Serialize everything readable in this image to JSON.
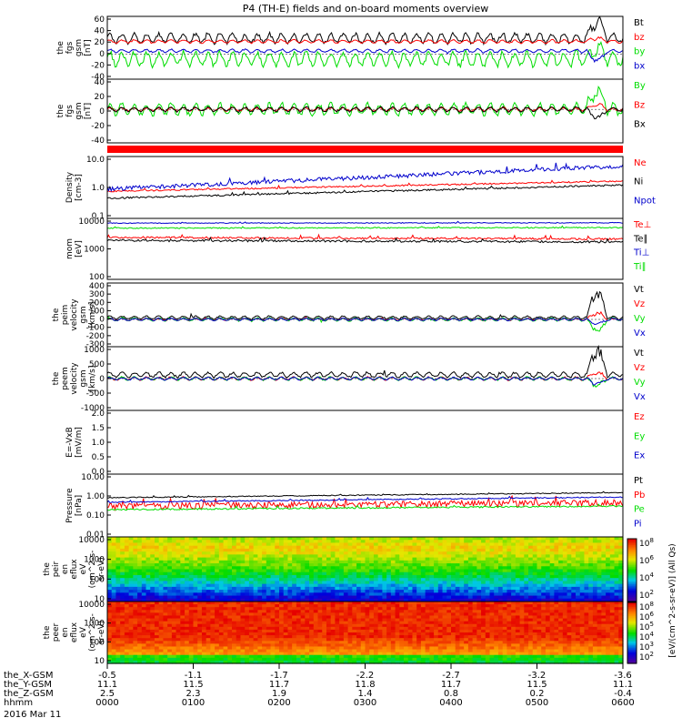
{
  "title": "P4 (TH-E) fields and on-board moments overview",
  "chart_data": [
    {
      "id": "fgs_gsm_top",
      "type": "line",
      "ylabel_lines": [
        "the",
        "fgs",
        "gsm",
        "[nT]"
      ],
      "yticks": [
        "60",
        "40",
        "20",
        "0",
        "-20",
        "-40"
      ],
      "ylim": [
        -40,
        60
      ],
      "log": false,
      "series": [
        {
          "name": "Bt",
          "color": "#000000",
          "base": 25,
          "amp": 9,
          "spike": 34
        },
        {
          "name": "bz",
          "color": "#ff0000",
          "base": 20,
          "amp": 3,
          "spike": 6
        },
        {
          "name": "by",
          "color": "#00dd00",
          "base": -8,
          "amp": 13,
          "spike": 20
        },
        {
          "name": "bx",
          "color": "#0000cc",
          "base": 5,
          "amp": 3,
          "spike": -18
        }
      ]
    },
    {
      "id": "fgs_gsm_second",
      "type": "line",
      "ylabel_lines": [
        "the",
        "fgs",
        "gsm",
        "[nT]"
      ],
      "yticks": [
        "40",
        "20",
        "0",
        "-20",
        "-40"
      ],
      "ylim": [
        -50,
        45
      ],
      "log": false,
      "series": [
        {
          "name": "By",
          "color": "#00dd00",
          "base": 0,
          "amp": 10,
          "spike": 35
        },
        {
          "name": "Bz",
          "color": "#ff0000",
          "base": 0,
          "amp": 3,
          "spike": 8
        },
        {
          "name": "Bx",
          "color": "#000000",
          "base": 0,
          "amp": 4,
          "spike": -15
        }
      ]
    },
    {
      "id": "density",
      "type": "line",
      "ylabel_lines": [
        "Density",
        "[cm-3]"
      ],
      "yticks": [
        "10.0",
        "1.0",
        "0.1"
      ],
      "ylim": [
        0.1,
        10
      ],
      "log": true,
      "series": [
        {
          "name": "Ne",
          "color": "#ff0000",
          "start": 0.75,
          "end": 1.6,
          "noise": 0.05
        },
        {
          "name": "Ni",
          "color": "#000000",
          "start": 0.45,
          "end": 1.2,
          "noise": 0.06
        },
        {
          "name": "Npot",
          "color": "#0000cc",
          "start": 0.9,
          "end": 5.0,
          "noise": 0.15
        }
      ]
    },
    {
      "id": "temperature",
      "type": "line",
      "ylabel_lines": [
        "mom",
        "[eV]"
      ],
      "yticks": [
        "10000",
        "1000",
        "100"
      ],
      "ylim": [
        100,
        10000
      ],
      "log": true,
      "series": [
        {
          "name": "Te⊥",
          "color": "#ff0000",
          "start": 2400,
          "end": 2100,
          "noise": 0.07
        },
        {
          "name": "Te∥",
          "color": "#000000",
          "start": 1900,
          "end": 1700,
          "noise": 0.08
        },
        {
          "name": "Ti⊥",
          "color": "#0000cc",
          "start": 7000,
          "end": 7200,
          "noise": 0.03
        },
        {
          "name": "Ti∥",
          "color": "#00dd00",
          "start": 4800,
          "end": 5000,
          "noise": 0.04
        }
      ]
    },
    {
      "id": "peim_velocity",
      "type": "line",
      "ylabel_lines": [
        "the",
        "peim",
        "velocity",
        "gsm",
        "[km/s]"
      ],
      "yticks": [
        "400",
        "300",
        "200",
        "100",
        "0",
        "-100",
        "-200",
        "-300"
      ],
      "ylim": [
        -300,
        400
      ],
      "log": false,
      "series": [
        {
          "name": "Vt",
          "color": "#000000",
          "base": 20,
          "amp": 20,
          "spike": 330
        },
        {
          "name": "Vz",
          "color": "#ff0000",
          "base": 0,
          "amp": 15,
          "spike": 90
        },
        {
          "name": "Vy",
          "color": "#00dd00",
          "base": 0,
          "amp": 20,
          "spike": -150
        },
        {
          "name": "Vx",
          "color": "#0000cc",
          "base": 0,
          "amp": 15,
          "spike": -60
        }
      ]
    },
    {
      "id": "peem_velocity",
      "type": "line",
      "ylabel_lines": [
        "the",
        "peem",
        "velocity",
        "gsm",
        "[km/s]"
      ],
      "yticks": [
        "1000",
        "500",
        "0",
        "-500",
        "-1000"
      ],
      "ylim": [
        -1000,
        1000
      ],
      "log": false,
      "series": [
        {
          "name": "Vt",
          "color": "#000000",
          "base": 120,
          "amp": 90,
          "spike": 900
        },
        {
          "name": "Vz",
          "color": "#ff0000",
          "base": 0,
          "amp": 60,
          "spike": 200
        },
        {
          "name": "Vy",
          "color": "#00dd00",
          "base": 0,
          "amp": 60,
          "spike": -250
        },
        {
          "name": "Vx",
          "color": "#0000cc",
          "base": 0,
          "amp": 50,
          "spike": -200
        }
      ]
    },
    {
      "id": "efield",
      "type": "line",
      "ylabel_lines": [
        "E=-VxB",
        "[mV/m]"
      ],
      "yticks": [
        "2.0",
        "1.5",
        "1.0",
        "0.5",
        "0.0"
      ],
      "ylim": [
        0,
        2
      ],
      "log": false,
      "series": [
        {
          "name": "Ez",
          "color": "#ff0000"
        },
        {
          "name": "Ey",
          "color": "#00dd00"
        },
        {
          "name": "Ex",
          "color": "#0000cc"
        }
      ]
    },
    {
      "id": "pressure",
      "type": "line",
      "ylabel_lines": [
        "Pressure",
        "[nPa]"
      ],
      "yticks": [
        "10.00",
        "1.00",
        "0.10",
        "0.01"
      ],
      "ylim": [
        0.01,
        10
      ],
      "log": true,
      "series": [
        {
          "name": "Pt",
          "color": "#000000",
          "start": 0.75,
          "end": 1.3,
          "noise": 0.05
        },
        {
          "name": "Pb",
          "color": "#ff0000",
          "start": 0.3,
          "end": 0.45,
          "noise": 0.35
        },
        {
          "name": "Pe",
          "color": "#00dd00",
          "start": 0.2,
          "end": 0.3,
          "noise": 0.08
        },
        {
          "name": "Pi",
          "color": "#0000cc",
          "start": 0.45,
          "end": 0.8,
          "noise": 0.06
        }
      ]
    },
    {
      "id": "peir_spectrogram",
      "type": "heatmap",
      "ylabel_lines": [
        "the",
        "peir",
        "en",
        "eflux",
        "eV",
        "(cm^2-s-",
        "sr-eV)"
      ],
      "yticks": [
        "10000",
        "1000",
        "100",
        "10"
      ],
      "ylim": [
        10,
        20000
      ],
      "log": true
    },
    {
      "id": "peer_spectrogram",
      "type": "heatmap",
      "ylabel_lines": [
        "the",
        "peer",
        "en",
        "eflux",
        "eV",
        "(cm^2-s-",
        "sr-eV)"
      ],
      "yticks": [
        "10000",
        "1000",
        "100",
        "10"
      ],
      "ylim": [
        7,
        20000
      ],
      "log": true
    }
  ],
  "colorbar": {
    "label": "[eV/(cm^2-s-sr-eV)] (All Qs)",
    "ticks_top": [
      "10^8",
      "10^6",
      "10^4",
      "10^2"
    ],
    "ticks_bottom": [
      "10^8",
      "10^6",
      "10^5",
      "10^4",
      "10^3",
      "10^2"
    ]
  },
  "x_axis": {
    "rows": [
      {
        "label": "the_X-GSM",
        "values": [
          "-0.5",
          "-1.1",
          "-1.7",
          "-2.2",
          "-2.7",
          "-3.2",
          "-3.6"
        ]
      },
      {
        "label": "the_Y-GSM",
        "values": [
          "11.1",
          "11.5",
          "11.7",
          "11.8",
          "11.7",
          "11.5",
          "11.1"
        ]
      },
      {
        "label": "the_Z-GSM",
        "values": [
          "2.5",
          "2.3",
          "1.9",
          "1.4",
          "0.8",
          "0.2",
          "-0.4"
        ]
      },
      {
        "label": "hhmm",
        "values": [
          "0000",
          "0100",
          "0200",
          "0300",
          "0400",
          "0500",
          "0600"
        ]
      }
    ],
    "date": "2016 Mar 11"
  }
}
